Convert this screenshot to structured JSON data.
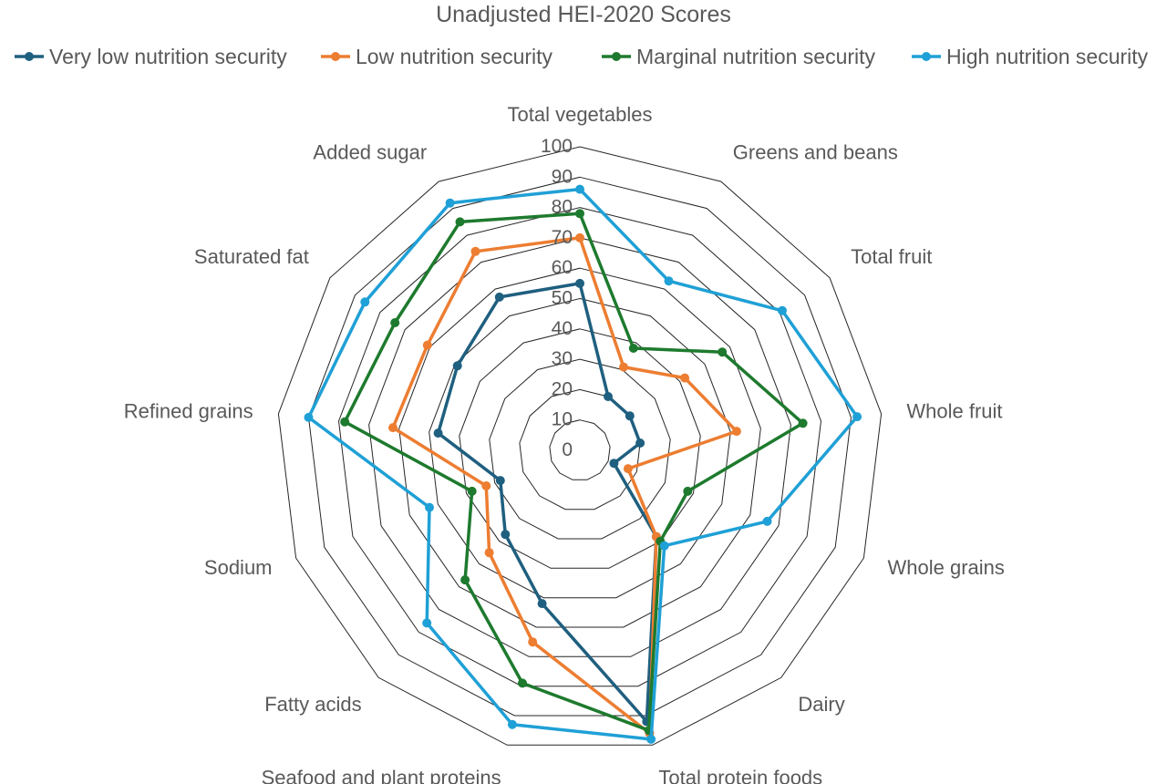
{
  "chart_data": {
    "type": "radar",
    "title": "Unadjusted HEI-2020 Scores",
    "categories": [
      "Total vegetables",
      "Greens and beans",
      "Total fruit",
      "Whole fruit",
      "Whole grains",
      "Dairy",
      "Total protein foods",
      "Seafood and plant proteins",
      "Fatty acids",
      "Sodium",
      "Refined grains",
      "Saturated fat",
      "Added sugar"
    ],
    "rlim": [
      0,
      100
    ],
    "ticks": [
      0,
      10,
      20,
      30,
      40,
      50,
      60,
      70,
      80,
      90,
      100
    ],
    "grid": true,
    "legend_position": "top",
    "series": [
      {
        "name": "Very low nutrition security",
        "color": "#1f5f7f",
        "values": [
          55,
          20,
          20,
          20,
          12,
          38,
          92,
          52,
          37,
          28,
          47,
          49,
          57
        ]
      },
      {
        "name": "Low nutrition security",
        "color": "#ed7d31",
        "values": [
          70,
          31,
          42,
          52,
          17,
          38,
          96,
          65,
          45,
          33,
          62,
          61,
          74
        ]
      },
      {
        "name": "Marginal nutrition security",
        "color": "#1e7a2e",
        "values": [
          78,
          38,
          57,
          74,
          38,
          40,
          95,
          79,
          57,
          38,
          78,
          74,
          85
        ]
      },
      {
        "name": "High nutrition security",
        "color": "#1fa0d6",
        "values": [
          86,
          63,
          81,
          92,
          66,
          42,
          98,
          93,
          76,
          53,
          90,
          86,
          92
        ]
      }
    ]
  }
}
